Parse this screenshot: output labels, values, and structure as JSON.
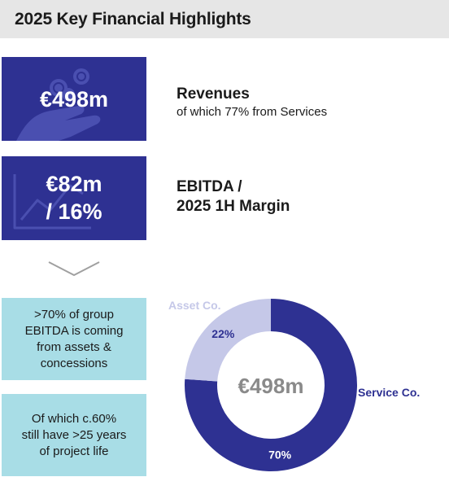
{
  "header": {
    "title": "2025 Key Financial Highlights"
  },
  "kpis": [
    {
      "value": "€498m",
      "title": "Revenues",
      "subtitle": "of which 77% from Services"
    },
    {
      "value_line1": "€82m",
      "value_line2": "/ 16%",
      "title_line1": "EBITDA /",
      "title_line2": "2025 1H Margin"
    }
  ],
  "callouts": [
    {
      "lines": [
        ">70% of group",
        "EBITDA is coming",
        "from assets &",
        "concessions"
      ]
    },
    {
      "lines": [
        "Of which c.60%",
        "still have >25 years",
        "of project life"
      ]
    }
  ],
  "colors": {
    "navy": "#2e3192",
    "teal": "#a8dde6",
    "lavender": "#c5c8e8",
    "header_bg": "#e6e6e6"
  },
  "chart_data": {
    "type": "pie",
    "style": "donut",
    "center_label": "€498m",
    "slices": [
      {
        "name": "Service Co.",
        "value": 70,
        "label": "70%",
        "color": "#2e3192"
      },
      {
        "name": "Asset Co.",
        "value": 22,
        "label": "22%",
        "color": "#c5c8e8"
      }
    ]
  }
}
